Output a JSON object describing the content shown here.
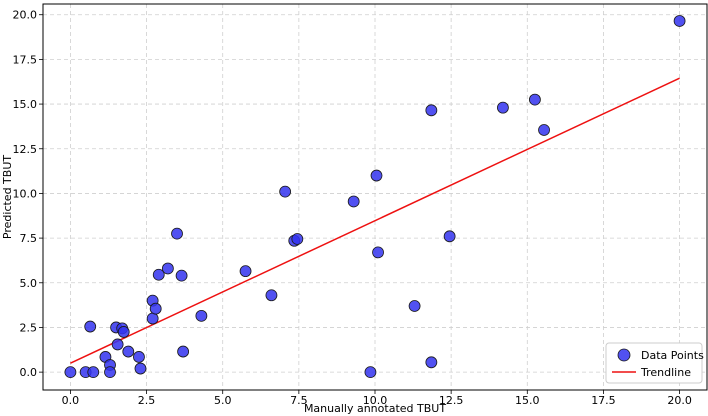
{
  "chart_data": {
    "type": "scatter",
    "xlabel": "Manually annotated TBUT",
    "ylabel": "Predicted TBUT",
    "xlim": [
      -0.9,
      20.9
    ],
    "ylim": [
      -1.0,
      20.6
    ],
    "xticks": [
      "0.0",
      "2.5",
      "5.0",
      "7.5",
      "10.0",
      "12.5",
      "15.0",
      "17.5",
      "20.0"
    ],
    "yticks": [
      "0.0",
      "2.5",
      "5.0",
      "7.5",
      "10.0",
      "12.5",
      "15.0",
      "17.5",
      "20.0"
    ],
    "grid": true,
    "legend_position": "bottom-right",
    "colors": {
      "points": "#3333ee",
      "point_edge": "#1a1a1a",
      "trendline": "#ee1111"
    },
    "series": [
      {
        "name": "Data Points",
        "kind": "scatter",
        "points": [
          [
            0.0,
            0.0
          ],
          [
            0.5,
            0.0
          ],
          [
            0.75,
            0.0
          ],
          [
            0.65,
            2.55
          ],
          [
            1.15,
            0.85
          ],
          [
            1.3,
            0.4
          ],
          [
            1.3,
            0.0
          ],
          [
            1.5,
            2.5
          ],
          [
            1.55,
            1.55
          ],
          [
            1.7,
            2.45
          ],
          [
            1.75,
            2.25
          ],
          [
            1.9,
            1.15
          ],
          [
            2.25,
            0.85
          ],
          [
            2.3,
            0.2
          ],
          [
            2.7,
            4.0
          ],
          [
            2.7,
            3.0
          ],
          [
            2.8,
            3.55
          ],
          [
            2.9,
            5.45
          ],
          [
            3.2,
            5.8
          ],
          [
            3.5,
            7.75
          ],
          [
            3.65,
            5.4
          ],
          [
            3.7,
            1.15
          ],
          [
            4.3,
            3.15
          ],
          [
            5.75,
            5.65
          ],
          [
            6.6,
            4.3
          ],
          [
            7.05,
            10.1
          ],
          [
            7.35,
            7.35
          ],
          [
            7.45,
            7.45
          ],
          [
            9.3,
            9.55
          ],
          [
            9.85,
            0.0
          ],
          [
            10.05,
            11.0
          ],
          [
            10.1,
            6.7
          ],
          [
            11.3,
            3.7
          ],
          [
            11.85,
            14.65
          ],
          [
            11.85,
            0.55
          ],
          [
            12.45,
            7.6
          ],
          [
            14.2,
            14.8
          ],
          [
            15.25,
            15.25
          ],
          [
            15.55,
            13.55
          ],
          [
            20.0,
            19.65
          ]
        ]
      },
      {
        "name": "Trendline",
        "kind": "line",
        "points": [
          [
            0.0,
            0.5
          ],
          [
            20.0,
            16.45
          ]
        ]
      }
    ]
  }
}
